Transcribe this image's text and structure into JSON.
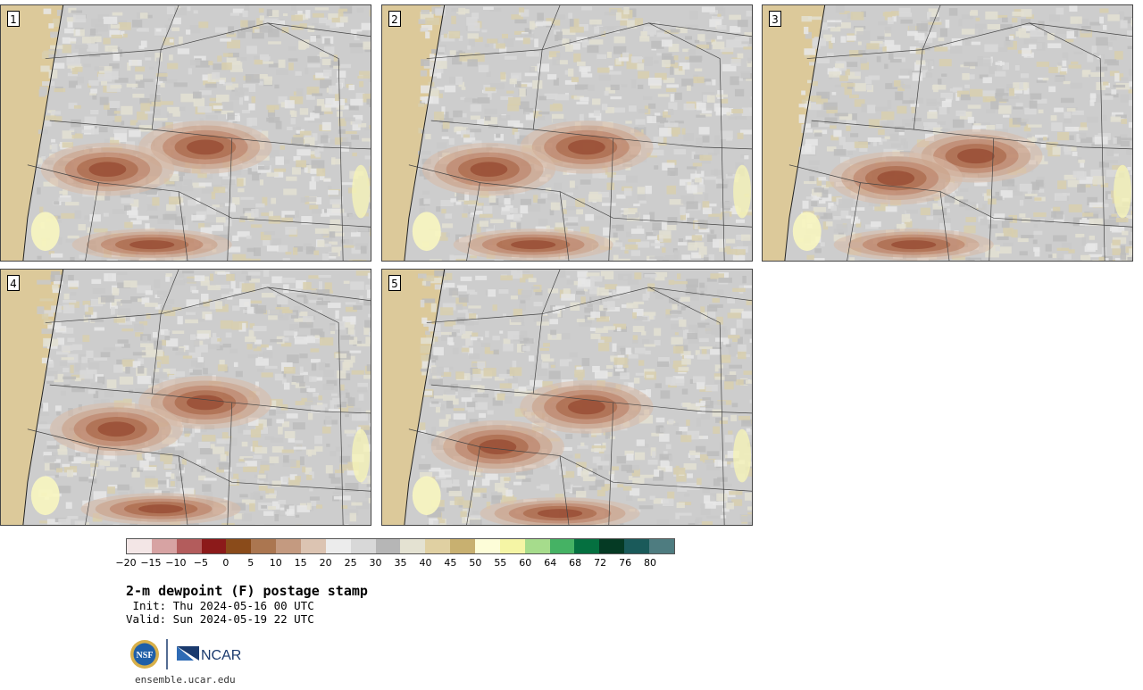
{
  "panels": [
    {
      "label": "1"
    },
    {
      "label": "2"
    },
    {
      "label": "3"
    },
    {
      "label": "4"
    },
    {
      "label": "5"
    }
  ],
  "colorbar": {
    "colors": [
      "#f3e6e6",
      "#d7a3a3",
      "#b35c5c",
      "#8c1a1a",
      "#8a4b1a",
      "#ab7650",
      "#c49a80",
      "#dcc4b2",
      "#ececec",
      "#d8d8d8",
      "#b6b6b6",
      "#e4e2d2",
      "#e0d0a2",
      "#c8b070",
      "#fdfdd8",
      "#f5f5a5",
      "#a6dc8c",
      "#45b264",
      "#057040",
      "#053a24",
      "#1a5a5a",
      "#4e7c80"
    ],
    "ticks": [
      "−20",
      "−15",
      "−10",
      "−5",
      "0",
      "5",
      "10",
      "15",
      "20",
      "25",
      "30",
      "35",
      "40",
      "45",
      "50",
      "55",
      "60",
      "64",
      "68",
      "72",
      "76",
      "80"
    ]
  },
  "title": "2-m dewpoint (F) postage stamp",
  "init": " Init: Thu 2024-05-16 00 UTC",
  "valid": "Valid: Sun 2024-05-19 22 UTC",
  "logo": {
    "left_text": "NSF",
    "right_text": "NCAR"
  },
  "site": "ensemble.ucar.edu"
}
